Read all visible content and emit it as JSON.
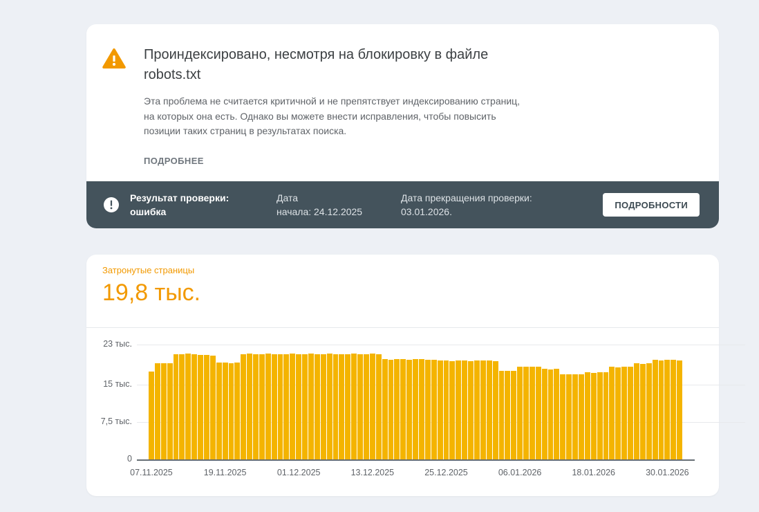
{
  "issue_card": {
    "title": "Проиндексировано, несмотря на блокировку в файле robots.txt",
    "description": "Эта проблема не считается критичной и не препятствует индексированию страниц, на которых она есть. Однако вы можете внести исправления, чтобы повысить позиции таких страниц в результатах поиска.",
    "learn_more_label": "ПОДРОБНЕЕ",
    "icons": {
      "warning": "warning-triangle-icon"
    },
    "warning_color": "#F29900"
  },
  "validation_bar": {
    "icons": {
      "status": "exclamation-circle-icon"
    },
    "result_text": "Результат проверки:\nошибка",
    "start_date_text": "Дата\nначала: 24.12.2025",
    "end_date_text": "Дата прекращения проверки:\n03.01.2026.",
    "details_button_label": "ПОДРОБНОСТИ",
    "background_color": "#44535C"
  },
  "chart_card": {
    "metric_label": "Затронутые страницы",
    "metric_value": "19,8 тыс.",
    "accent_color": "#F29900"
  },
  "chart_data": {
    "type": "bar",
    "title": "Затронутые страницы",
    "bar_color": "#F4B400",
    "grid": true,
    "legend": "none",
    "ylim": [
      0,
      23000
    ],
    "start_date": "07.11.2025",
    "interval": "daily",
    "y_ticks": [
      {
        "label": "23 тыс.",
        "value": 23000
      },
      {
        "label": "15 тыс.",
        "value": 15000
      },
      {
        "label": "7,5 тыс.",
        "value": 7500
      },
      {
        "label": "0",
        "value": 0
      }
    ],
    "x_ticks": [
      {
        "label": "07.11.2025",
        "index": 0
      },
      {
        "label": "19.11.2025",
        "index": 12
      },
      {
        "label": "01.12.2025",
        "index": 24
      },
      {
        "label": "13.12.2025",
        "index": 36
      },
      {
        "label": "25.12.2025",
        "index": 48
      },
      {
        "label": "06.01.2026",
        "index": 60
      },
      {
        "label": "18.01.2026",
        "index": 72
      },
      {
        "label": "30.01.2026",
        "index": 84
      }
    ],
    "values": [
      17600,
      19300,
      19300,
      19200,
      21100,
      21100,
      21200,
      21100,
      20900,
      20900,
      20800,
      19400,
      19400,
      19300,
      19400,
      21100,
      21200,
      21100,
      21100,
      21200,
      21100,
      21100,
      21100,
      21200,
      21100,
      21100,
      21200,
      21100,
      21100,
      21200,
      21100,
      21100,
      21100,
      21200,
      21100,
      21100,
      21200,
      21100,
      20100,
      20000,
      20100,
      20100,
      20000,
      20100,
      20100,
      20000,
      19900,
      19800,
      19800,
      19700,
      19800,
      19800,
      19700,
      19800,
      19800,
      19800,
      19700,
      17800,
      17700,
      17800,
      18600,
      18600,
      18500,
      18600,
      18100,
      18000,
      18100,
      17100,
      17100,
      17000,
      17100,
      17400,
      17300,
      17400,
      17400,
      18500,
      18400,
      18500,
      18600,
      19200,
      19100,
      19200,
      19900,
      19800,
      19900,
      20000,
      19800
    ]
  }
}
